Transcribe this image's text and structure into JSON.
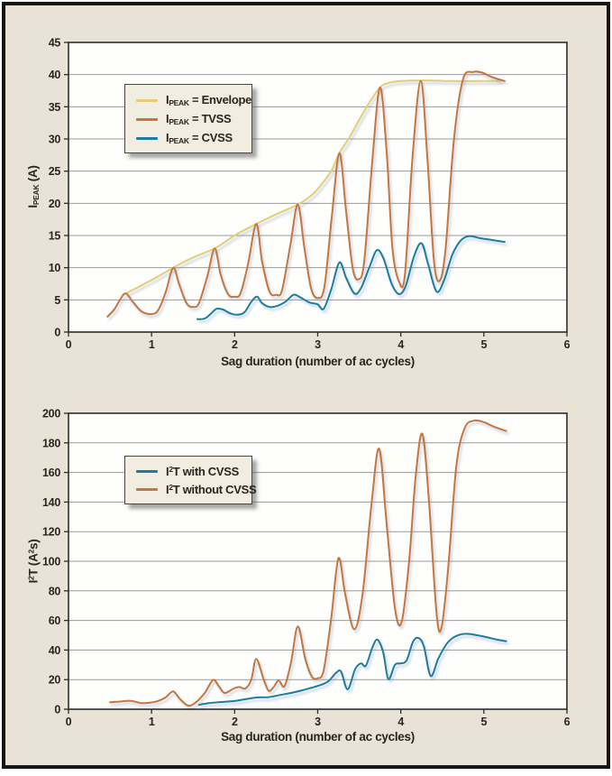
{
  "page": {
    "background_color": "#e8e3d6",
    "frame_border_color": "#181512",
    "plot_background": "#fefefc"
  },
  "colors": {
    "envelope": "#e5cd74",
    "tvss": "#c4763f",
    "cvss": "#1e7ca0",
    "grid": "#9a9a9a",
    "axis": "#2f2b28",
    "text": "#2a2520",
    "legend_bg": "#f1ede1"
  },
  "top_chart": {
    "xlabel": "Sag duration (number of ac cycles)",
    "ylabel": {
      "base": "I",
      "sub": "PEAK",
      "unit": " (A)"
    },
    "legend": {
      "items": [
        {
          "base": "I",
          "sub": "PEAK",
          "rest": " = Envelope"
        },
        {
          "base": "I",
          "sub": "PEAK",
          "rest": " = TVSS"
        },
        {
          "base": "I",
          "sub": "PEAK",
          "rest": " = CVSS"
        }
      ]
    }
  },
  "bottom_chart": {
    "xlabel": "Sag duration (number of ac cycles)",
    "ylabel": {
      "p1": "I",
      "s1": "2",
      "p2": "T (A",
      "s2": "2",
      "p3": "s)"
    },
    "legend": {
      "items": [
        {
          "base": "I",
          "sup": "2",
          "rest": "T with CVSS"
        },
        {
          "base": "I",
          "sup": "2",
          "rest": "T without CVSS"
        }
      ]
    }
  },
  "chart_data": [
    {
      "type": "line",
      "title": "",
      "xlabel": "Sag duration (number of ac cycles)",
      "ylabel": "I_PEAK (A)",
      "xlim": [
        0,
        6
      ],
      "ylim": [
        0,
        45
      ],
      "xticks": [
        0,
        1,
        2,
        3,
        4,
        5,
        6
      ],
      "yticks": [
        0,
        5,
        10,
        15,
        20,
        25,
        30,
        35,
        40,
        45
      ],
      "grid": "horizontal",
      "legend_position": "upper-left-inside",
      "series": [
        {
          "name": "I_PEAK = Envelope",
          "color": "#e5cd74",
          "points": [
            [
              0.69,
              6
            ],
            [
              0.9,
              7.4
            ],
            [
              1.1,
              8.8
            ],
            [
              1.26,
              10
            ],
            [
              1.5,
              11.6
            ],
            [
              1.76,
              13
            ],
            [
              2.0,
              15
            ],
            [
              2.26,
              16.8
            ],
            [
              2.5,
              18.3
            ],
            [
              2.76,
              19.8
            ],
            [
              2.92,
              21.2
            ],
            [
              3.05,
              23
            ],
            [
              3.17,
              25.2
            ],
            [
              3.26,
              27.8
            ],
            [
              3.38,
              30.2
            ],
            [
              3.5,
              33
            ],
            [
              3.62,
              35.6
            ],
            [
              3.75,
              38
            ],
            [
              3.85,
              38.7
            ],
            [
              4.0,
              39
            ],
            [
              4.3,
              39.1
            ],
            [
              4.6,
              39
            ],
            [
              4.9,
              39
            ],
            [
              5.2,
              39
            ]
          ]
        },
        {
          "name": "I_PEAK = TVSS",
          "color": "#c4763f",
          "points": [
            [
              0.47,
              2.4
            ],
            [
              0.55,
              3.5
            ],
            [
              0.62,
              5
            ],
            [
              0.69,
              6
            ],
            [
              0.78,
              4.6
            ],
            [
              0.88,
              3.2
            ],
            [
              1.0,
              2.8
            ],
            [
              1.08,
              3.4
            ],
            [
              1.17,
              6.2
            ],
            [
              1.26,
              10
            ],
            [
              1.33,
              7.5
            ],
            [
              1.42,
              4.5
            ],
            [
              1.5,
              3.9
            ],
            [
              1.57,
              4.5
            ],
            [
              1.67,
              8.6
            ],
            [
              1.76,
              13
            ],
            [
              1.83,
              9
            ],
            [
              1.92,
              5.9
            ],
            [
              2.0,
              5.5
            ],
            [
              2.07,
              6
            ],
            [
              2.16,
              10.5
            ],
            [
              2.26,
              16.8
            ],
            [
              2.33,
              11
            ],
            [
              2.42,
              6.3
            ],
            [
              2.5,
              5.8
            ],
            [
              2.57,
              6.5
            ],
            [
              2.67,
              13.5
            ],
            [
              2.76,
              19.8
            ],
            [
              2.84,
              13
            ],
            [
              2.92,
              6.8
            ],
            [
              3.0,
              5.3
            ],
            [
              3.08,
              7
            ],
            [
              3.17,
              18
            ],
            [
              3.26,
              27.8
            ],
            [
              3.34,
              19
            ],
            [
              3.42,
              10
            ],
            [
              3.49,
              8.2
            ],
            [
              3.56,
              11
            ],
            [
              3.66,
              27
            ],
            [
              3.75,
              38
            ],
            [
              3.83,
              28
            ],
            [
              3.9,
              13
            ],
            [
              3.98,
              7.8
            ],
            [
              4.05,
              9
            ],
            [
              4.14,
              27
            ],
            [
              4.24,
              39
            ],
            [
              4.32,
              27
            ],
            [
              4.4,
              11
            ],
            [
              4.47,
              8
            ],
            [
              4.54,
              13
            ],
            [
              4.64,
              30
            ],
            [
              4.75,
              39.3
            ],
            [
              4.87,
              40.4
            ],
            [
              4.98,
              40.3
            ],
            [
              5.1,
              39.6
            ],
            [
              5.25,
              39
            ]
          ]
        },
        {
          "name": "I_PEAK = CVSS",
          "color": "#1e7ca0",
          "points": [
            [
              1.55,
              2
            ],
            [
              1.64,
              2.1
            ],
            [
              1.71,
              2.8
            ],
            [
              1.78,
              3.6
            ],
            [
              1.86,
              3.5
            ],
            [
              1.95,
              2.9
            ],
            [
              2.04,
              2.7
            ],
            [
              2.12,
              3.1
            ],
            [
              2.2,
              4.7
            ],
            [
              2.27,
              5.5
            ],
            [
              2.33,
              4.5
            ],
            [
              2.42,
              3.9
            ],
            [
              2.52,
              4.1
            ],
            [
              2.62,
              4.8
            ],
            [
              2.71,
              5.8
            ],
            [
              2.79,
              5.4
            ],
            [
              2.9,
              4.6
            ],
            [
              3.0,
              4.3
            ],
            [
              3.07,
              3.6
            ],
            [
              3.16,
              6.5
            ],
            [
              3.26,
              10.8
            ],
            [
              3.34,
              8.5
            ],
            [
              3.44,
              6
            ],
            [
              3.52,
              6.8
            ],
            [
              3.62,
              10
            ],
            [
              3.71,
              12.7
            ],
            [
              3.79,
              11.5
            ],
            [
              3.89,
              7.5
            ],
            [
              3.98,
              5.9
            ],
            [
              4.06,
              7.2
            ],
            [
              4.16,
              11.8
            ],
            [
              4.25,
              13.8
            ],
            [
              4.33,
              10.5
            ],
            [
              4.43,
              6.3
            ],
            [
              4.52,
              8
            ],
            [
              4.62,
              12
            ],
            [
              4.72,
              14.2
            ],
            [
              4.82,
              14.9
            ],
            [
              4.95,
              14.6
            ],
            [
              5.1,
              14.3
            ],
            [
              5.25,
              14
            ]
          ]
        }
      ]
    },
    {
      "type": "line",
      "title": "",
      "xlabel": "Sag duration (number of ac cycles)",
      "ylabel": "I2T (A2s)",
      "xlim": [
        0,
        6
      ],
      "ylim": [
        0,
        200
      ],
      "xticks": [
        0,
        1,
        2,
        3,
        4,
        5,
        6
      ],
      "yticks": [
        0,
        20,
        40,
        60,
        80,
        100,
        120,
        140,
        160,
        180,
        200
      ],
      "grid": "horizontal",
      "legend_position": "upper-left-inside",
      "series": [
        {
          "name": "I2T with CVSS",
          "color": "#1e7ca0",
          "points": [
            [
              1.57,
              3
            ],
            [
              1.68,
              4
            ],
            [
              1.82,
              4.8
            ],
            [
              1.95,
              5.3
            ],
            [
              2.06,
              6.1
            ],
            [
              2.17,
              7.2
            ],
            [
              2.28,
              8
            ],
            [
              2.4,
              8.1
            ],
            [
              2.5,
              9.1
            ],
            [
              2.6,
              10.2
            ],
            [
              2.72,
              11.5
            ],
            [
              2.83,
              13
            ],
            [
              2.93,
              14.6
            ],
            [
              3.04,
              16.5
            ],
            [
              3.13,
              19
            ],
            [
              3.22,
              24.5
            ],
            [
              3.28,
              25.5
            ],
            [
              3.36,
              13.5
            ],
            [
              3.45,
              27
            ],
            [
              3.52,
              31
            ],
            [
              3.58,
              29.5
            ],
            [
              3.66,
              42
            ],
            [
              3.72,
              47
            ],
            [
              3.79,
              38
            ],
            [
              3.85,
              20.5
            ],
            [
              3.93,
              30
            ],
            [
              4.0,
              31
            ],
            [
              4.07,
              33
            ],
            [
              4.15,
              46
            ],
            [
              4.22,
              48
            ],
            [
              4.28,
              42
            ],
            [
              4.36,
              22.5
            ],
            [
              4.45,
              34
            ],
            [
              4.55,
              44
            ],
            [
              4.65,
              49
            ],
            [
              4.78,
              51
            ],
            [
              4.92,
              50
            ],
            [
              5.05,
              48.5
            ],
            [
              5.16,
              47
            ],
            [
              5.27,
              46
            ]
          ]
        },
        {
          "name": "I2T without CVSS",
          "color": "#c4763f",
          "points": [
            [
              0.5,
              4.7
            ],
            [
              0.62,
              5.2
            ],
            [
              0.75,
              5.7
            ],
            [
              0.87,
              4.2
            ],
            [
              0.98,
              4.4
            ],
            [
              1.08,
              5.6
            ],
            [
              1.17,
              8
            ],
            [
              1.26,
              12
            ],
            [
              1.34,
              7
            ],
            [
              1.44,
              2.5
            ],
            [
              1.53,
              4.5
            ],
            [
              1.64,
              11
            ],
            [
              1.74,
              19.8
            ],
            [
              1.81,
              15.5
            ],
            [
              1.88,
              11
            ],
            [
              1.99,
              14
            ],
            [
              2.06,
              15
            ],
            [
              2.13,
              14
            ],
            [
              2.2,
              20
            ],
            [
              2.26,
              34
            ],
            [
              2.35,
              20
            ],
            [
              2.41,
              12.5
            ],
            [
              2.47,
              15
            ],
            [
              2.53,
              19.5
            ],
            [
              2.6,
              15.5
            ],
            [
              2.68,
              32
            ],
            [
              2.76,
              56
            ],
            [
              2.85,
              34
            ],
            [
              2.93,
              22
            ],
            [
              3.0,
              21
            ],
            [
              3.07,
              26
            ],
            [
              3.16,
              60
            ],
            [
              3.25,
              102
            ],
            [
              3.33,
              78
            ],
            [
              3.44,
              54
            ],
            [
              3.54,
              78
            ],
            [
              3.65,
              140
            ],
            [
              3.74,
              176
            ],
            [
              3.83,
              125
            ],
            [
              3.93,
              68
            ],
            [
              4.01,
              59
            ],
            [
              4.1,
              100
            ],
            [
              4.18,
              158
            ],
            [
              4.26,
              186
            ],
            [
              4.34,
              140
            ],
            [
              4.43,
              65
            ],
            [
              4.49,
              55
            ],
            [
              4.57,
              95
            ],
            [
              4.67,
              165
            ],
            [
              4.77,
              190
            ],
            [
              4.88,
              195
            ],
            [
              5.0,
              194
            ],
            [
              5.12,
              191
            ],
            [
              5.27,
              188
            ]
          ]
        }
      ]
    }
  ]
}
